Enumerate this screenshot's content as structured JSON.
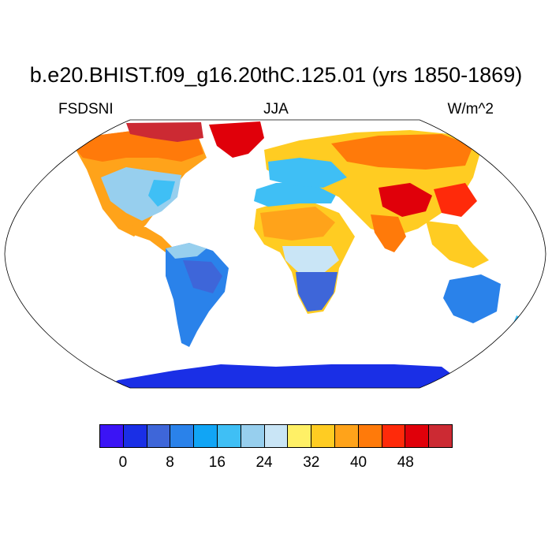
{
  "header": {
    "title": "b.e20.BHIST.f09_g16.20thC.125.01 (yrs 1850-1869)",
    "variable": "FSDSNI",
    "season": "JJA",
    "units": "W/m^2"
  },
  "colorbar": {
    "colors": [
      "#3b14f5",
      "#1a2fe6",
      "#3e66d9",
      "#2a82ea",
      "#11a5f5",
      "#3fbff5",
      "#97cfee",
      "#c9e5f6",
      "#fff066",
      "#ffcc22",
      "#ffa31a",
      "#ff7a0a",
      "#ff2a0a",
      "#e0000a",
      "#cc2a33"
    ],
    "tick_labels": [
      "0",
      "8",
      "16",
      "24",
      "32",
      "40",
      "48"
    ]
  }
}
